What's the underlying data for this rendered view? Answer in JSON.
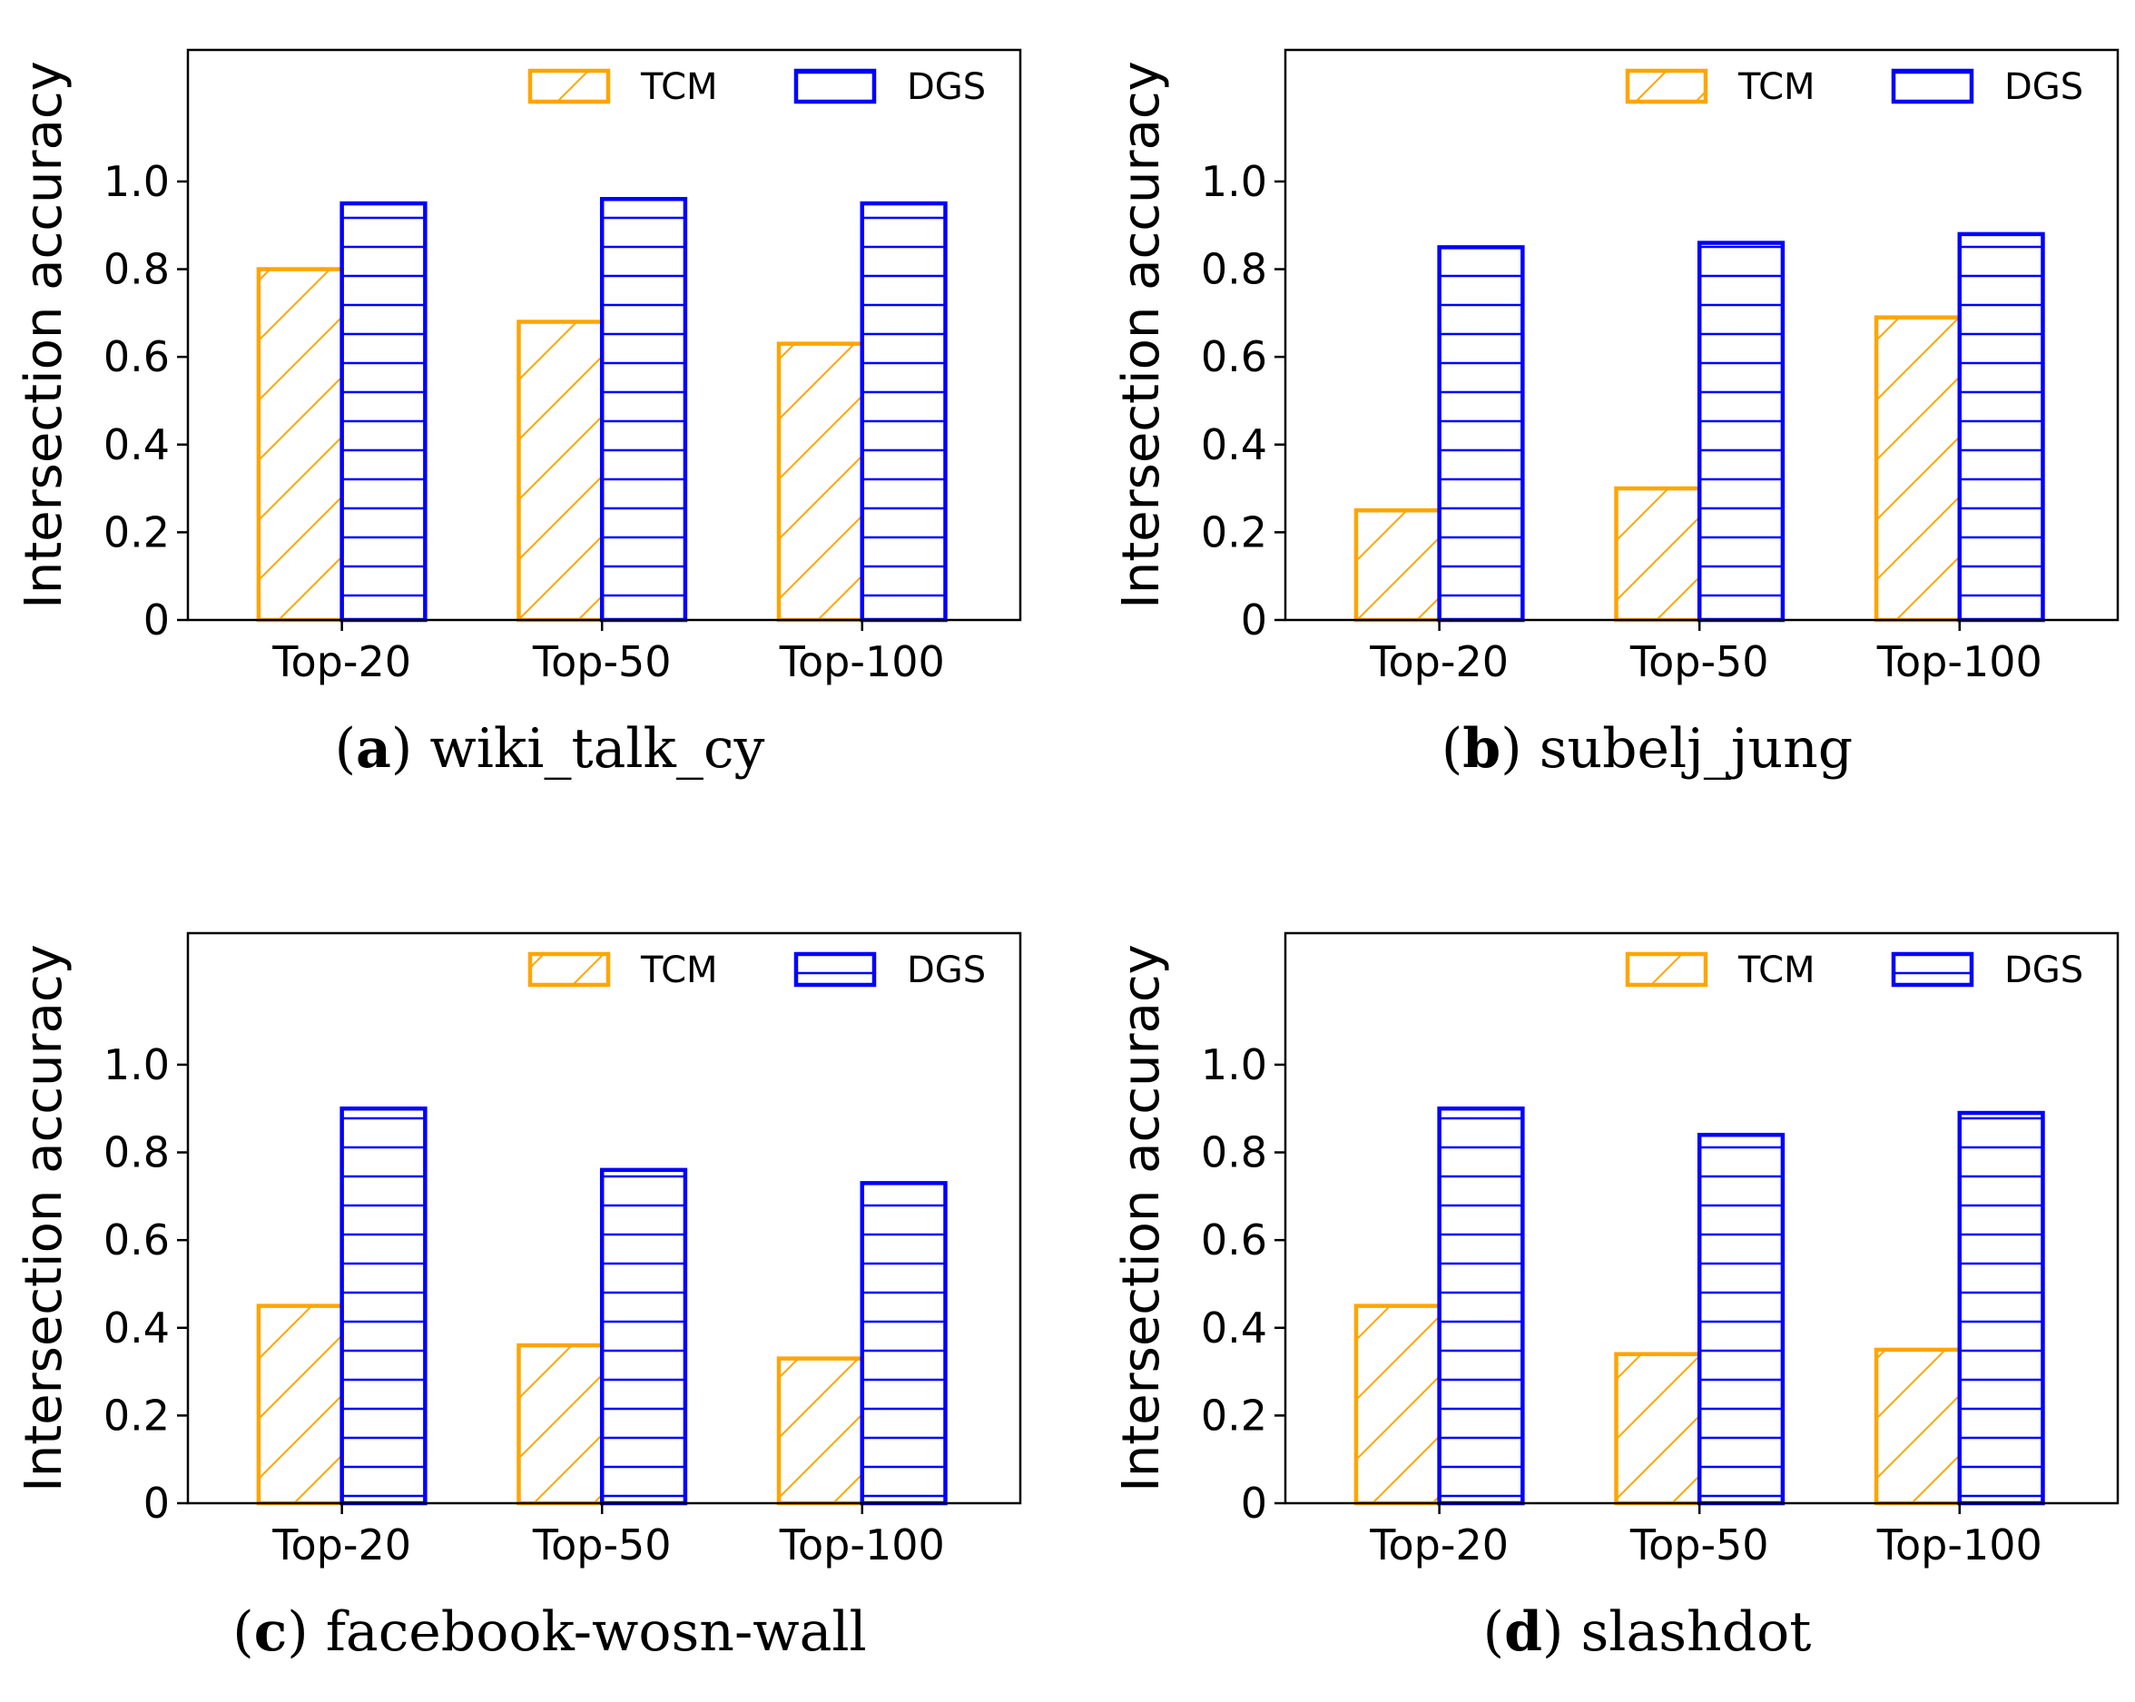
{
  "colors": {
    "TCM": "#FFA500",
    "DGS": "#0000FF"
  },
  "chart_data": [
    {
      "type": "bar",
      "caption_letter": "a",
      "caption_name": "wiki_talk_cy",
      "ylabel": "Intersection accuracy",
      "xlabel": "",
      "categories": [
        "Top-20",
        "Top-50",
        "Top-100"
      ],
      "series": [
        {
          "name": "TCM",
          "values": [
            0.8,
            0.68,
            0.63
          ],
          "hatch": "diagonal"
        },
        {
          "name": "DGS",
          "values": [
            0.95,
            0.96,
            0.95
          ],
          "hatch": "horizontal"
        }
      ],
      "ylim": [
        0,
        1.3
      ],
      "yticks": [
        0,
        0.2,
        0.4,
        0.6,
        0.8,
        1.0
      ],
      "ytick_labels": [
        "0",
        "0.2",
        "0.4",
        "0.6",
        "0.8",
        "1.0"
      ],
      "legend_position": "upper-right",
      "grid": false
    },
    {
      "type": "bar",
      "caption_letter": "b",
      "caption_name": "subelj_jung",
      "ylabel": "Intersection accuracy",
      "xlabel": "",
      "categories": [
        "Top-20",
        "Top-50",
        "Top-100"
      ],
      "series": [
        {
          "name": "TCM",
          "values": [
            0.25,
            0.3,
            0.69
          ],
          "hatch": "diagonal"
        },
        {
          "name": "DGS",
          "values": [
            0.85,
            0.86,
            0.88
          ],
          "hatch": "horizontal"
        }
      ],
      "ylim": [
        0,
        1.3
      ],
      "yticks": [
        0,
        0.2,
        0.4,
        0.6,
        0.8,
        1.0
      ],
      "ytick_labels": [
        "0",
        "0.2",
        "0.4",
        "0.6",
        "0.8",
        "1.0"
      ],
      "legend_position": "upper-right",
      "grid": false
    },
    {
      "type": "bar",
      "caption_letter": "c",
      "caption_name": "facebook-wosn-wall",
      "ylabel": "Intersection accuracy",
      "xlabel": "",
      "categories": [
        "Top-20",
        "Top-50",
        "Top-100"
      ],
      "series": [
        {
          "name": "TCM",
          "values": [
            0.45,
            0.36,
            0.33
          ],
          "hatch": "diagonal"
        },
        {
          "name": "DGS",
          "values": [
            0.9,
            0.76,
            0.73
          ],
          "hatch": "horizontal"
        }
      ],
      "ylim": [
        0,
        1.3
      ],
      "yticks": [
        0,
        0.2,
        0.4,
        0.6,
        0.8,
        1.0
      ],
      "ytick_labels": [
        "0",
        "0.2",
        "0.4",
        "0.6",
        "0.8",
        "1.0"
      ],
      "legend_position": "upper-right",
      "grid": false
    },
    {
      "type": "bar",
      "caption_letter": "d",
      "caption_name": "slashdot",
      "ylabel": "Intersection accuracy",
      "xlabel": "",
      "categories": [
        "Top-20",
        "Top-50",
        "Top-100"
      ],
      "series": [
        {
          "name": "TCM",
          "values": [
            0.45,
            0.34,
            0.35
          ],
          "hatch": "diagonal"
        },
        {
          "name": "DGS",
          "values": [
            0.9,
            0.84,
            0.89
          ],
          "hatch": "horizontal"
        }
      ],
      "ylim": [
        0,
        1.3
      ],
      "yticks": [
        0,
        0.2,
        0.4,
        0.6,
        0.8,
        1.0
      ],
      "ytick_labels": [
        "0",
        "0.2",
        "0.4",
        "0.6",
        "0.8",
        "1.0"
      ],
      "legend_position": "upper-right",
      "grid": false
    }
  ]
}
